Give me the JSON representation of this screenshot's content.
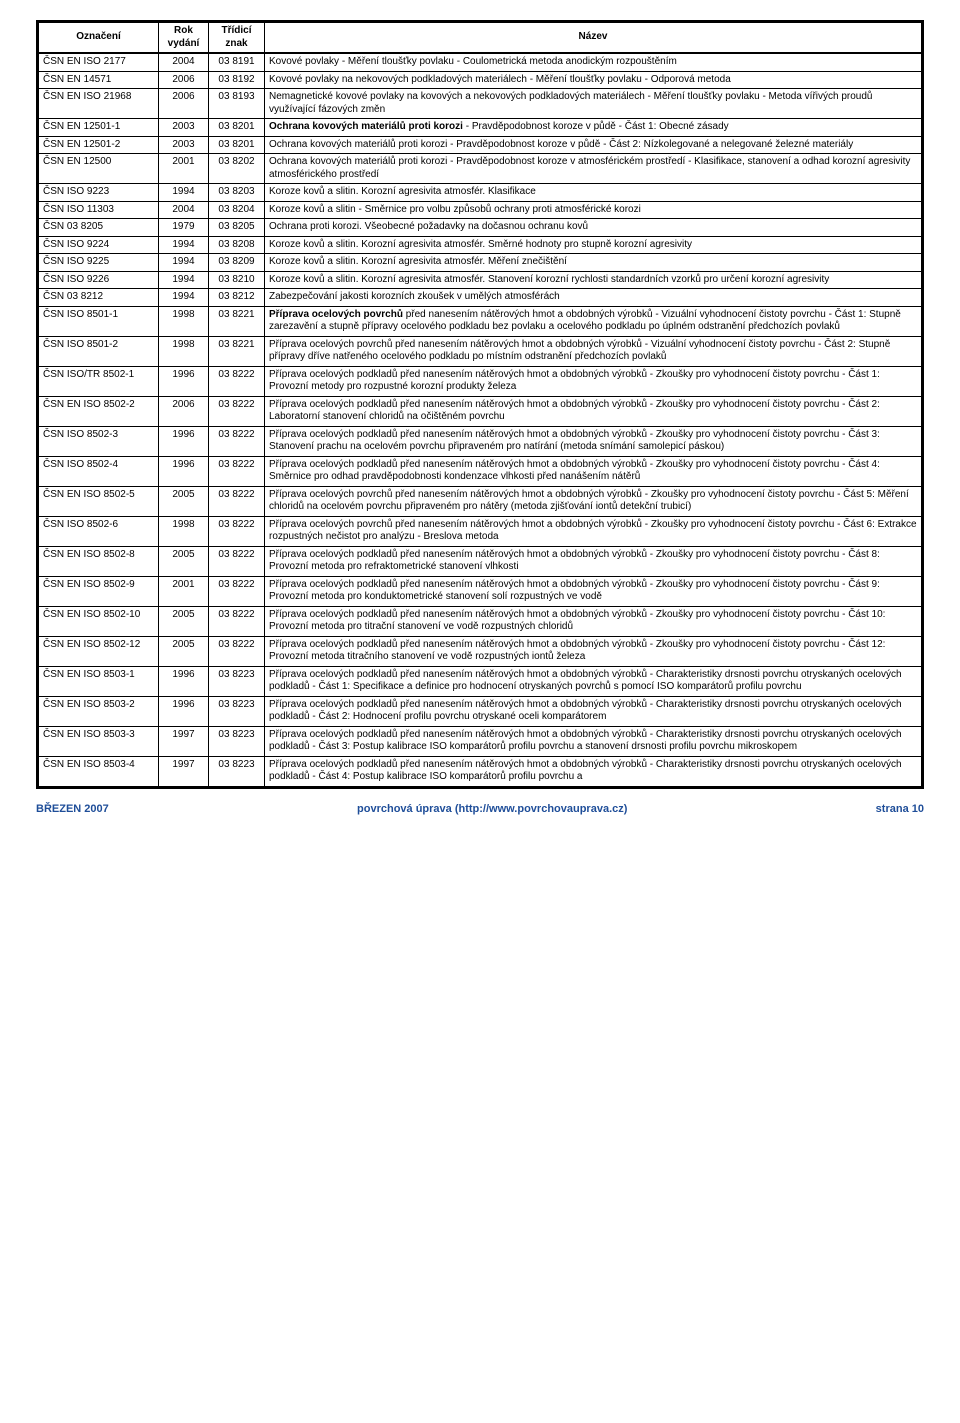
{
  "columns": [
    "Označení",
    "Rok vydání",
    "Třídicí znak",
    "Název"
  ],
  "rows": [
    [
      "ČSN EN ISO 2177",
      "2004",
      "03 8191",
      "Kovové povlaky - Měření tloušťky povlaku - Coulometrická metoda anodickým rozpouštěním"
    ],
    [
      "ČSN EN 14571",
      "2006",
      "03 8192",
      "Kovové povlaky na nekovových podkladových materiálech - Měření tloušťky povlaku - Odporová metoda"
    ],
    [
      "ČSN EN ISO 21968",
      "2006",
      "03 8193",
      "Nemagnetické kovové povlaky na kovových a nekovových podkladových materiálech - Měření tloušťky povlaku - Metoda vířivých proudů využívající fázových změn"
    ],
    [
      "ČSN EN 12501-1",
      "2003",
      "03 8201",
      "<b>Ochrana kovových materiálů proti korozi</b> - Pravděpodobnost koroze v půdě - Část 1: Obecné zásady"
    ],
    [
      "ČSN EN 12501-2",
      "2003",
      "03 8201",
      "Ochrana kovových materiálů proti korozi - Pravděpodobnost koroze v půdě - Část 2: Nízkolegované a nelegované železné materiály"
    ],
    [
      "ČSN EN 12500",
      "2001",
      "03 8202",
      "Ochrana kovových materiálů proti korozi - Pravděpodobnost koroze v atmosférickém prostředí - Klasifikace, stanovení a odhad korozní agresivity atmosférického prostředí"
    ],
    [
      "ČSN ISO 9223",
      "1994",
      "03 8203",
      "Koroze kovů a slitin. Korozní agresivita atmosfér. Klasifikace"
    ],
    [
      "ČSN ISO 11303",
      "2004",
      "03 8204",
      "Koroze kovů a slitin - Směrnice pro volbu způsobů ochrany proti atmosférické korozi"
    ],
    [
      "ČSN 03 8205",
      "1979",
      "03 8205",
      "Ochrana proti korozi. Všeobecné požadavky na dočasnou ochranu kovů"
    ],
    [
      "ČSN ISO 9224",
      "1994",
      "03 8208",
      "Koroze kovů a slitin. Korozní agresivita atmosfér. Směrné hodnoty pro stupně korozní agresivity"
    ],
    [
      "ČSN ISO 9225",
      "1994",
      "03 8209",
      "Koroze kovů a slitin. Korozní agresivita atmosfér. Měření znečištění"
    ],
    [
      "ČSN ISO 9226",
      "1994",
      "03 8210",
      "Koroze kovů a slitin. Korozní agresivita atmosfér. Stanovení korozní rychlosti standardních vzorků pro určení korozní agresivity"
    ],
    [
      "ČSN 03 8212",
      "1994",
      "03 8212",
      "Zabezpečování jakosti korozních zkoušek v umělých atmosférách"
    ],
    [
      "ČSN ISO 8501-1",
      "1998",
      "03 8221",
      "<b>Příprava ocelových povrchů</b> před nanesením nátěrových hmot a obdobných výrobků - Vizuální vyhodnocení čistoty povrchu - Část 1: Stupně zarezavění a stupně přípravy ocelového podkladu bez povlaku a ocelového podkladu po úplném odstranění předchozích povlaků"
    ],
    [
      "ČSN ISO 8501-2",
      "1998",
      "03 8221",
      "Příprava ocelových povrchů před nanesením nátěrových hmot a obdobných výrobků - Vizuální vyhodnocení čistoty povrchu - Část 2: Stupně přípravy dříve natřeného ocelového podkladu po místním odstranění předchozích povlaků"
    ],
    [
      "ČSN ISO/TR  8502-1",
      "1996",
      "03 8222",
      "Příprava ocelových podkladů před nanesením nátěrových hmot a obdobných výrobků - Zkoušky pro vyhodnocení čistoty povrchu - Část 1: Provozní metody pro rozpustné korozní produkty železa"
    ],
    [
      "ČSN EN ISO 8502-2",
      "2006",
      "03 8222",
      "Příprava ocelových podkladů před nanesením nátěrových hmot a obdobných výrobků - Zkoušky pro vyhodnocení čistoty povrchu - Část 2: Laboratorní stanovení chloridů na očištěném povrchu"
    ],
    [
      "ČSN ISO 8502-3",
      "1996",
      "03 8222",
      "Příprava ocelových podkladů před nanesením nátěrových hmot a obdobných výrobků - Zkoušky pro vyhodnocení čistoty povrchu - Část 3: Stanovení prachu na ocelovém povrchu připraveném pro natírání (metoda snímání samolepicí páskou)"
    ],
    [
      "ČSN ISO 8502-4",
      "1996",
      "03 8222",
      "Příprava ocelových podkladů před nanesením nátěrových hmot a obdobných výrobků - Zkoušky pro vyhodnocení čistoty povrchu - Část 4: Směrnice pro odhad pravděpodobnosti kondenzace vlhkosti před nanášením nátěrů"
    ],
    [
      "ČSN EN ISO 8502-5",
      "2005",
      "03 8222",
      "Příprava ocelových povrchů před nanesením nátěrových hmot a obdobných výrobků - Zkoušky pro vyhodnocení čistoty povrchu - Část 5: Měření chloridů na ocelovém povrchu připraveném pro nátěry (metoda zjišťování iontů detekční trubicí)"
    ],
    [
      "ČSN ISO 8502-6",
      "1998",
      "03 8222",
      "Příprava ocelových povrchů před nanesením nátěrových hmot a obdobných výrobků - Zkoušky pro vyhodnocení čistoty povrchu - Část 6: Extrakce rozpustných nečistot pro analýzu - Breslova metoda"
    ],
    [
      "ČSN EN ISO 8502-8",
      "2005",
      "03 8222",
      "Příprava ocelových podkladů před nanesením nátěrových hmot a obdobných výrobků - Zkoušky pro vyhodnocení čistoty povrchu - Část 8: Provozní metoda pro refraktometrické stanovení vlhkosti"
    ],
    [
      "ČSN EN ISO 8502-9",
      "2001",
      "03 8222",
      "Příprava ocelových podkladů před nanesením nátěrových hmot a obdobných výrobků - Zkoušky pro vyhodnocení čistoty povrchu - Část 9: Provozní metoda pro konduktometrické stanovení solí rozpustných ve vodě"
    ],
    [
      "ČSN EN ISO 8502-10",
      "2005",
      "03 8222",
      "Příprava ocelových podkladů před nanesením nátěrových hmot a obdobných výrobků - Zkoušky pro vyhodnocení čistoty povrchu - Část 10: Provozní metoda pro titrační stanovení ve vodě rozpustných chloridů"
    ],
    [
      "ČSN EN ISO 8502-12",
      "2005",
      "03 8222",
      "Příprava ocelových podkladů před nanesením nátěrových hmot a obdobných výrobků - Zkoušky pro vyhodnocení čistoty povrchu - Část 12: Provozní metoda titračního stanovení ve vodě rozpustných iontů železa"
    ],
    [
      "ČSN EN ISO 8503-1",
      "1996",
      "03 8223",
      "Příprava ocelových podkladů před nanesením nátěrových hmot a obdobných výrobků - Charakteristiky drsnosti povrchu otryskaných ocelových podkladů - Část 1: Specifikace a definice pro hodnocení otryskaných povrchů s pomocí ISO komparátorů profilu povrchu"
    ],
    [
      "ČSN EN ISO 8503-2",
      "1996",
      "03 8223",
      "Příprava ocelových podkladů před nanesením nátěrových hmot a obdobných výrobků - Charakteristiky drsnosti povrchu otryskaných ocelových podkladů - Část 2: Hodnocení profilu povrchu otryskané oceli komparátorem"
    ],
    [
      "ČSN EN ISO 8503-3",
      "1997",
      "03 8223",
      "Příprava ocelových podkladů před nanesením nátěrových hmot a obdobných výrobků - Charakteristiky drsnosti povrchu otryskaných ocelových podkladů - Část 3: Postup kalibrace ISO komparátorů profilu povrchu a stanovení drsnosti profilu povrchu mikroskopem"
    ],
    [
      "ČSN EN ISO 8503-4",
      "1997",
      "03 8223",
      "Příprava ocelových podkladů před nanesením nátěrových hmot a obdobných výrobků - Charakteristiky drsnosti povrchu otryskaných ocelových podkladů - Část 4: Postup kalibrace ISO komparátorů profilu povrchu a"
    ]
  ],
  "footer": {
    "left": "BŘEZEN 2007",
    "center": "povrchová úprava (http://www.povrchovauprava.cz)",
    "right": "strana 10"
  }
}
